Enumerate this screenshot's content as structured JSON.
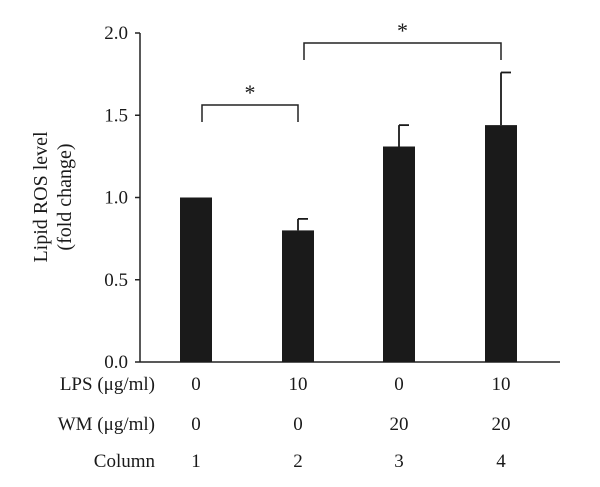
{
  "chart_data": {
    "type": "bar",
    "title": "",
    "xlabel": "",
    "ylabel": [
      "Lipid ROS level",
      "(fold change)"
    ],
    "ylim": [
      0,
      2.0
    ],
    "yticks": [
      "0.0",
      "0.5",
      "1.0",
      "1.5",
      "2.0"
    ],
    "grid": false,
    "legend": "none",
    "bar_color": "#1a1a1a",
    "categories": [
      "1",
      "2",
      "3",
      "4"
    ],
    "values": [
      1.0,
      0.8,
      1.31,
      1.44
    ],
    "error_upper": [
      0.0,
      0.07,
      0.13,
      0.32
    ],
    "condition_rows": [
      {
        "label": "LPS (μg/ml)",
        "values": [
          "0",
          "10",
          "0",
          "10"
        ]
      },
      {
        "label": "WM (μg/ml)",
        "values": [
          "0",
          "0",
          "20",
          "20"
        ]
      },
      {
        "label": "Column",
        "values": [
          "1",
          "2",
          "3",
          "4"
        ]
      }
    ],
    "significance": [
      {
        "from": 0,
        "to": 1,
        "label": "*"
      },
      {
        "from": 1,
        "to": 3,
        "label": "*"
      }
    ]
  }
}
